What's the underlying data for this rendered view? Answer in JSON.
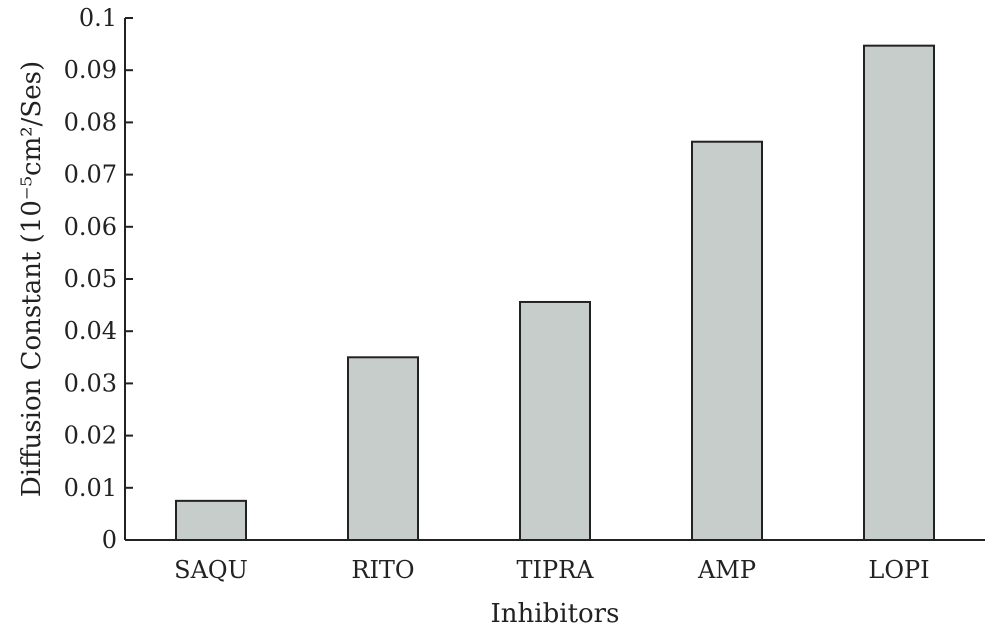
{
  "chart_data": {
    "type": "bar",
    "categories": [
      "SAQU",
      "RITO",
      "TIPRA",
      "AMP",
      "LOPI"
    ],
    "values": [
      0.0075,
      0.035,
      0.0456,
      0.0763,
      0.0947
    ],
    "title": "",
    "xlabel": "Inhibitors",
    "ylabel": "Diffusion Constant (10⁻⁵cm²/Ses)",
    "ylim": [
      0,
      0.1
    ],
    "yticks": [
      0,
      0.01,
      0.02,
      0.03,
      0.04,
      0.05,
      0.06,
      0.07,
      0.08,
      0.09,
      0.1
    ],
    "ytick_labels": [
      "0",
      "0.01",
      "0.02",
      "0.03",
      "0.04",
      "0.05",
      "0.06",
      "0.07",
      "0.08",
      "0.09",
      "0.1"
    ],
    "bar_color": "#c7cdca",
    "edge_color": "#222222",
    "grid": false,
    "legend": "none"
  }
}
